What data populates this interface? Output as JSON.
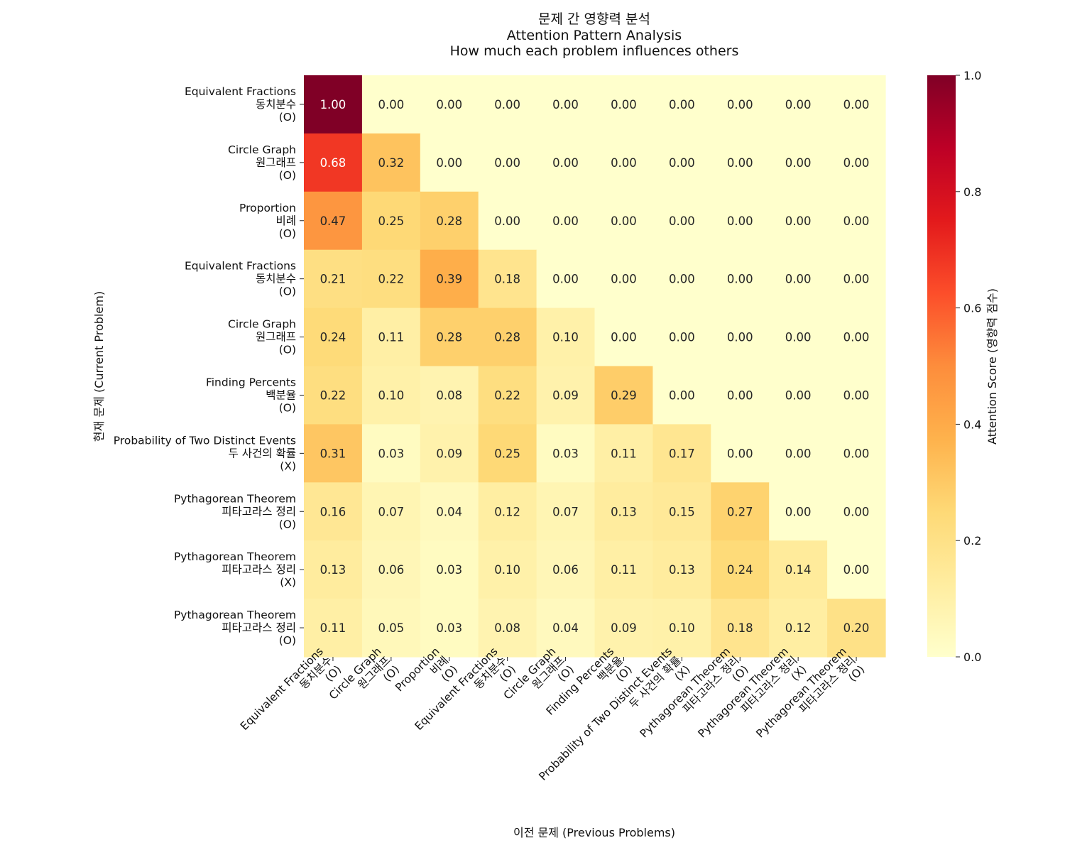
{
  "chart_data": {
    "type": "heatmap",
    "title_lines": [
      "문제 간 영향력 분석",
      "Attention Pattern Analysis",
      "How much each problem influences others"
    ],
    "xlabel": "이전 문제 (Previous Problems)",
    "ylabel": "현재 문제 (Current Problem)",
    "colorbar_label": "Attention Score (영향력 점수)",
    "colormap": "YlOrRd",
    "vmin": 0.0,
    "vmax": 1.0,
    "colorbar_ticks": [
      "0.0",
      "0.2",
      "0.4",
      "0.6",
      "0.8",
      "1.0"
    ],
    "labels": [
      [
        "Equivalent Fractions",
        "동치분수",
        "(O)"
      ],
      [
        "Circle Graph",
        "원그래프",
        "(O)"
      ],
      [
        "Proportion",
        "비례",
        "(O)"
      ],
      [
        "Equivalent Fractions",
        "동치분수",
        "(O)"
      ],
      [
        "Circle Graph",
        "원그래프",
        "(O)"
      ],
      [
        "Finding Percents",
        "백분율",
        "(O)"
      ],
      [
        "Probability of Two Distinct Events",
        "두 사건의 확률",
        "(X)"
      ],
      [
        "Pythagorean Theorem",
        "피타고라스 정리",
        "(O)"
      ],
      [
        "Pythagorean Theorem",
        "피타고라스 정리",
        "(X)"
      ],
      [
        "Pythagorean Theorem",
        "피타고라스 정리",
        "(O)"
      ]
    ],
    "values": [
      [
        1.0,
        0.0,
        0.0,
        0.0,
        0.0,
        0.0,
        0.0,
        0.0,
        0.0,
        0.0
      ],
      [
        0.68,
        0.32,
        0.0,
        0.0,
        0.0,
        0.0,
        0.0,
        0.0,
        0.0,
        0.0
      ],
      [
        0.47,
        0.25,
        0.28,
        0.0,
        0.0,
        0.0,
        0.0,
        0.0,
        0.0,
        0.0
      ],
      [
        0.21,
        0.22,
        0.39,
        0.18,
        0.0,
        0.0,
        0.0,
        0.0,
        0.0,
        0.0
      ],
      [
        0.24,
        0.11,
        0.28,
        0.28,
        0.1,
        0.0,
        0.0,
        0.0,
        0.0,
        0.0
      ],
      [
        0.22,
        0.1,
        0.08,
        0.22,
        0.09,
        0.29,
        0.0,
        0.0,
        0.0,
        0.0
      ],
      [
        0.31,
        0.03,
        0.09,
        0.25,
        0.03,
        0.11,
        0.17,
        0.0,
        0.0,
        0.0
      ],
      [
        0.16,
        0.07,
        0.04,
        0.12,
        0.07,
        0.13,
        0.15,
        0.27,
        0.0,
        0.0
      ],
      [
        0.13,
        0.06,
        0.03,
        0.1,
        0.06,
        0.11,
        0.13,
        0.24,
        0.14,
        0.0
      ],
      [
        0.11,
        0.05,
        0.03,
        0.08,
        0.04,
        0.09,
        0.1,
        0.18,
        0.12,
        0.2
      ]
    ]
  }
}
